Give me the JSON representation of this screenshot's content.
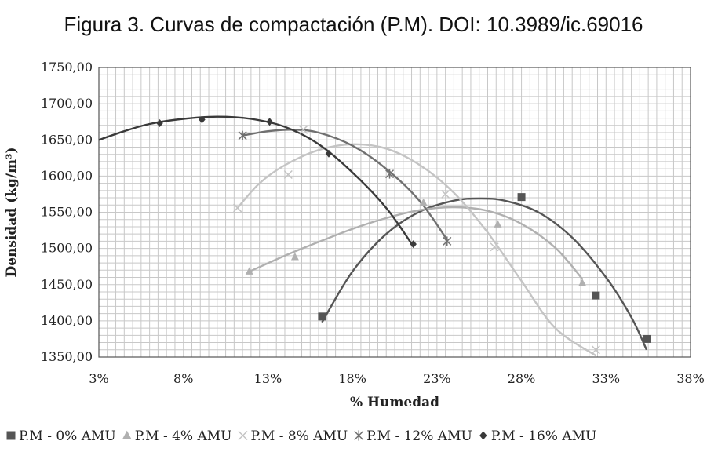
{
  "figure": {
    "title": "Figura 3. Curvas de compactación (P.M). DOI: 10.3989/ic.69016"
  },
  "chart_data": {
    "type": "scatter",
    "xlabel": "% Humedad",
    "ylabel": "Densidad (kg/m³)",
    "xlim": [
      3,
      38
    ],
    "ylim": [
      1350,
      1750
    ],
    "x_tick_values": [
      3,
      8,
      13,
      18,
      23,
      28,
      33,
      38
    ],
    "x_tick_labels": [
      "3%",
      "8%",
      "13%",
      "18%",
      "23%",
      "28%",
      "33%",
      "38%"
    ],
    "y_tick_values": [
      1350,
      1400,
      1450,
      1500,
      1550,
      1600,
      1650,
      1700,
      1750
    ],
    "y_tick_labels": [
      "1350,00",
      "1400,00",
      "1450,00",
      "1500,00",
      "1550,00",
      "1600,00",
      "1650,00",
      "1700,00",
      "1750,00"
    ],
    "grid": true,
    "legend_position": "bottom",
    "series": [
      {
        "name": "P.M - 0% AMU",
        "marker": "square",
        "color": "#555555",
        "points": [
          [
            16.2,
            1406
          ],
          [
            28.0,
            1571
          ],
          [
            32.4,
            1435
          ],
          [
            35.4,
            1375
          ]
        ],
        "trend": [
          [
            16.2,
            1398
          ],
          [
            18.0,
            1468
          ],
          [
            20.0,
            1520
          ],
          [
            22.0,
            1551
          ],
          [
            24.0,
            1566
          ],
          [
            25.5,
            1569
          ],
          [
            27.0,
            1566
          ],
          [
            29.0,
            1550
          ],
          [
            31.0,
            1515
          ],
          [
            33.0,
            1460
          ],
          [
            34.5,
            1405
          ],
          [
            35.4,
            1360
          ]
        ]
      },
      {
        "name": "P.M - 4% AMU",
        "marker": "triangle",
        "color": "#b0b0b0",
        "points": [
          [
            11.9,
            1468
          ],
          [
            14.6,
            1488
          ],
          [
            22.2,
            1563
          ],
          [
            26.6,
            1533
          ],
          [
            31.6,
            1452
          ]
        ],
        "trend": [
          [
            11.9,
            1468
          ],
          [
            14.0,
            1490
          ],
          [
            16.0,
            1509
          ],
          [
            18.0,
            1527
          ],
          [
            20.0,
            1542
          ],
          [
            22.0,
            1553
          ],
          [
            24.0,
            1557
          ],
          [
            26.0,
            1552
          ],
          [
            28.0,
            1534
          ],
          [
            30.0,
            1501
          ],
          [
            31.6,
            1458
          ]
        ]
      },
      {
        "name": "P.M - 8% AMU",
        "marker": "cross",
        "color": "#c4c4c4",
        "points": [
          [
            11.2,
            1556
          ],
          [
            14.2,
            1602
          ],
          [
            15.1,
            1664
          ],
          [
            23.5,
            1575
          ],
          [
            26.4,
            1502
          ],
          [
            32.4,
            1360
          ]
        ],
        "trend": [
          [
            11.2,
            1556
          ],
          [
            12.5,
            1590
          ],
          [
            14.0,
            1615
          ],
          [
            16.0,
            1636
          ],
          [
            18.0,
            1644
          ],
          [
            20.0,
            1638
          ],
          [
            22.0,
            1615
          ],
          [
            24.0,
            1577
          ],
          [
            26.0,
            1522
          ],
          [
            28.0,
            1455
          ],
          [
            30.0,
            1390
          ],
          [
            32.4,
            1352
          ]
        ]
      },
      {
        "name": "P.M - 12% AMU",
        "marker": "asterisk",
        "color": "#707070",
        "points": [
          [
            11.5,
            1656
          ],
          [
            20.2,
            1603
          ],
          [
            23.6,
            1510
          ]
        ],
        "trend": [
          [
            11.5,
            1656
          ],
          [
            13.0,
            1662
          ],
          [
            14.5,
            1664
          ],
          [
            16.0,
            1660
          ],
          [
            18.0,
            1642
          ],
          [
            20.0,
            1610
          ],
          [
            22.0,
            1565
          ],
          [
            23.6,
            1512
          ]
        ]
      },
      {
        "name": "P.M - 16% AMU",
        "marker": "diamond",
        "color": "#3a3a3a",
        "points": [
          [
            6.6,
            1673
          ],
          [
            9.1,
            1678
          ],
          [
            13.1,
            1675
          ],
          [
            16.6,
            1631
          ],
          [
            21.6,
            1506
          ]
        ],
        "trend": [
          [
            3.0,
            1650
          ],
          [
            4.5,
            1662
          ],
          [
            6.0,
            1672
          ],
          [
            8.0,
            1679
          ],
          [
            10.0,
            1682
          ],
          [
            12.0,
            1679
          ],
          [
            14.0,
            1668
          ],
          [
            16.0,
            1644
          ],
          [
            18.0,
            1605
          ],
          [
            20.0,
            1556
          ],
          [
            21.6,
            1503
          ]
        ]
      }
    ]
  }
}
